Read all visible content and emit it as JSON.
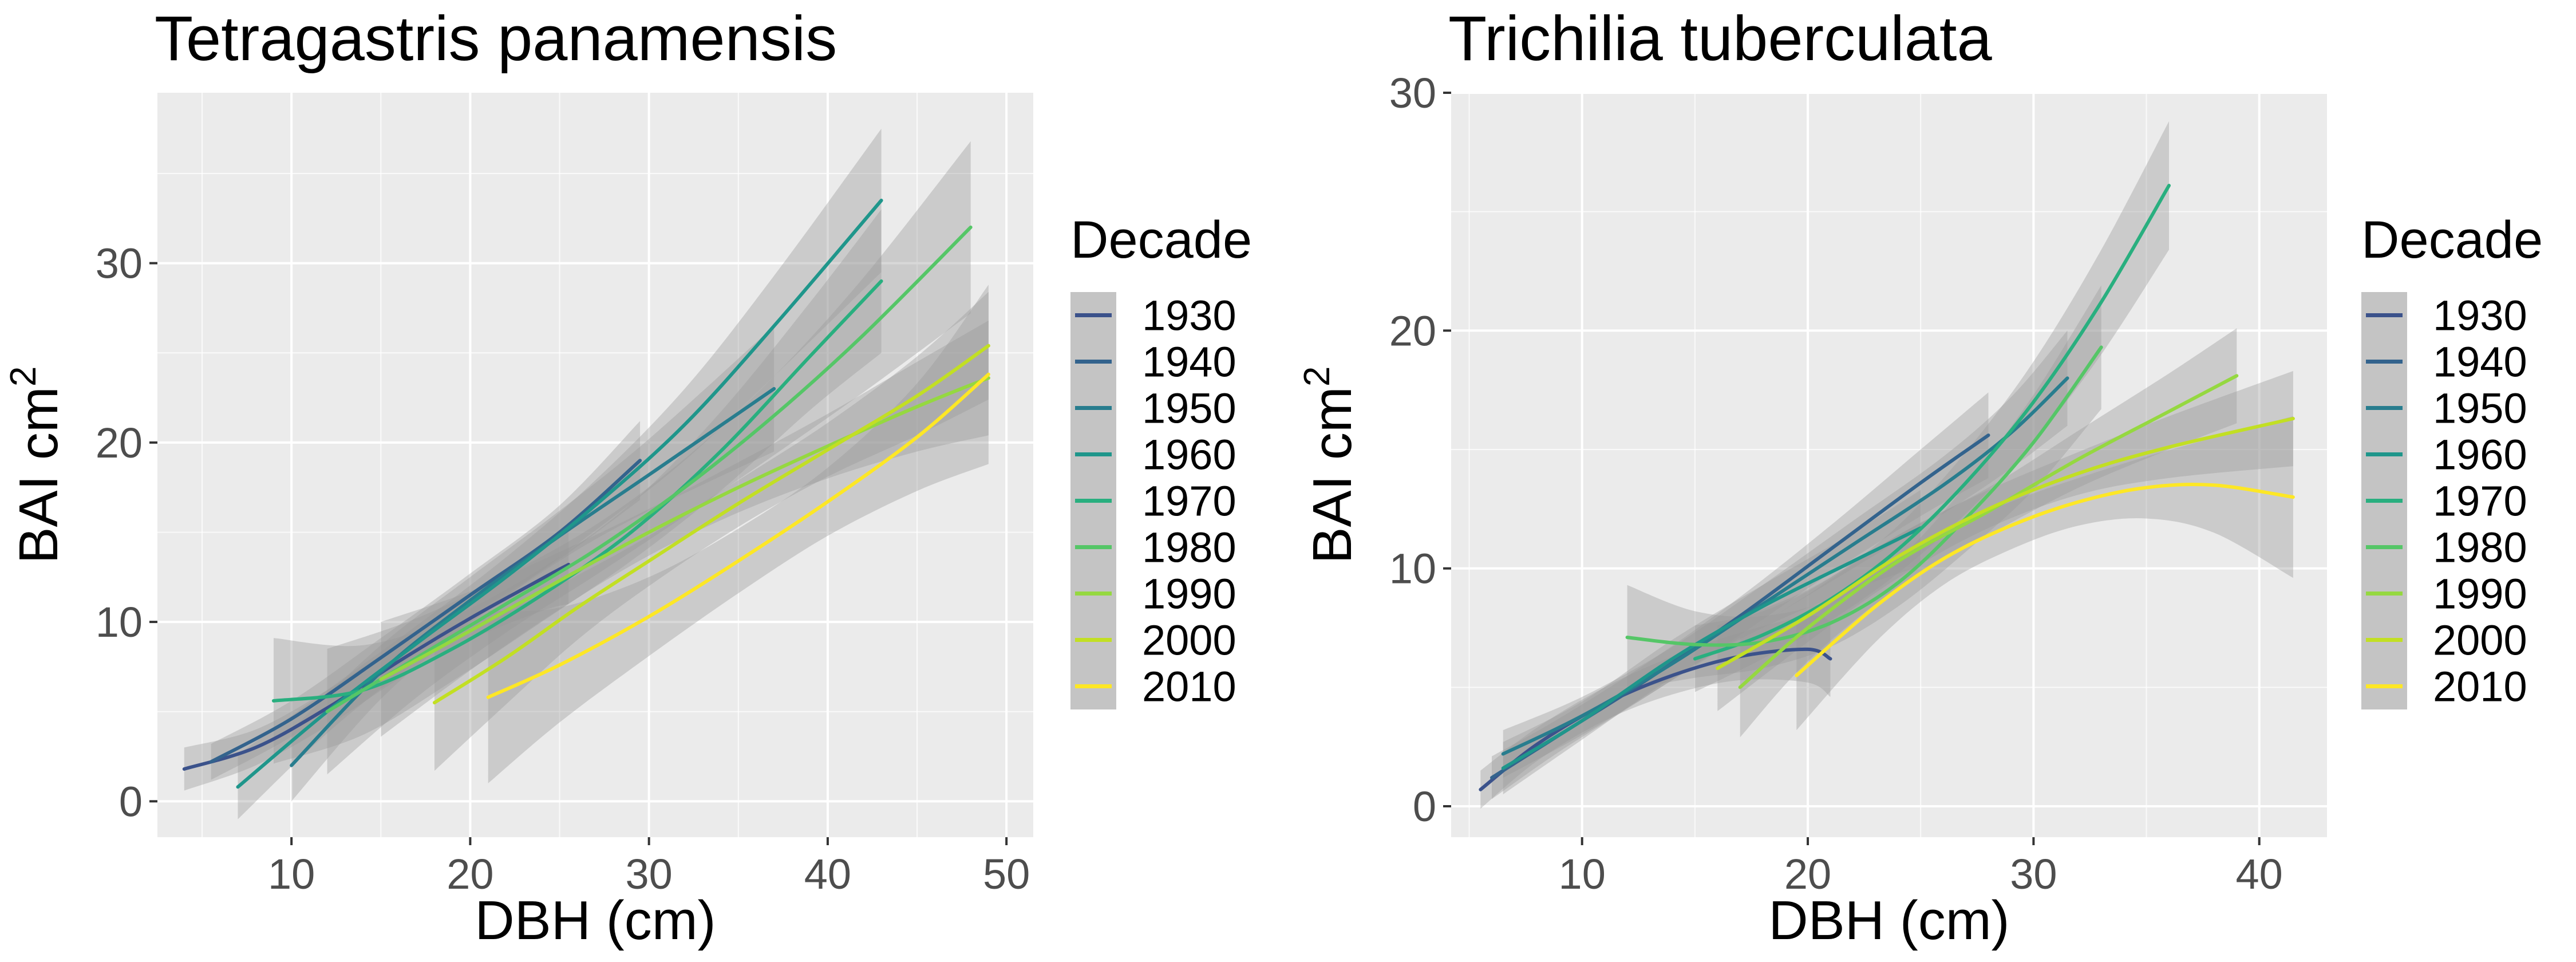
{
  "colors": {
    "1930": "#3B528B",
    "1940": "#33638D",
    "1950": "#287D8E",
    "1960": "#1F968B",
    "1970": "#29AF7F",
    "1980": "#55C667",
    "1990": "#95D840",
    "2000": "#C2DF23",
    "2010": "#FDE725"
  },
  "chart_data": [
    {
      "type": "line",
      "title": "Tetragastris panamensis",
      "xlabel": "DBH (cm)",
      "ylabel": "BAI cm",
      "ylabel_sup": "2",
      "xlim": [
        2.5,
        51.5
      ],
      "ylim": [
        -2,
        39.5
      ],
      "xticks": [
        10,
        20,
        30,
        40,
        50
      ],
      "yticks": [
        0,
        10,
        20,
        30
      ],
      "grid": true,
      "legend": {
        "title": "Decade",
        "position": "right",
        "entries": [
          "1930",
          "1940",
          "1950",
          "1960",
          "1970",
          "1980",
          "1990",
          "2000",
          "2010"
        ]
      },
      "series": [
        {
          "name": "1930",
          "x": [
            4,
            8,
            12,
            16,
            20,
            24,
            25.5
          ],
          "y": [
            1.8,
            3.0,
            5.2,
            7.8,
            10.2,
            12.4,
            13.2
          ],
          "band": [
            1.2,
            1.0,
            1.0,
            1.0,
            1.2,
            1.8,
            2.2
          ]
        },
        {
          "name": "1940",
          "x": [
            5.5,
            10,
            15,
            20,
            25,
            29.5
          ],
          "y": [
            2.2,
            4.6,
            8.0,
            11.5,
            15.0,
            19.0
          ],
          "band": [
            1.0,
            1.0,
            1.1,
            1.2,
            1.5,
            2.2
          ]
        },
        {
          "name": "1950",
          "x": [
            10,
            15,
            20,
            25,
            30,
            37
          ],
          "y": [
            2.0,
            7.2,
            11.2,
            14.8,
            18.2,
            23.0
          ],
          "band": [
            2.0,
            1.5,
            1.3,
            1.4,
            2.0,
            3.5
          ]
        },
        {
          "name": "1960",
          "x": [
            7,
            12,
            17,
            22,
            27,
            32,
            37,
            43
          ],
          "y": [
            0.8,
            5.0,
            8.8,
            12.5,
            16.5,
            21.0,
            26.5,
            33.5
          ],
          "band": [
            1.8,
            1.2,
            1.0,
            1.1,
            1.4,
            2.0,
            2.8,
            4.0
          ]
        },
        {
          "name": "1970",
          "x": [
            9,
            14,
            19,
            24,
            29,
            34,
            39,
            43
          ],
          "y": [
            5.6,
            6.2,
            8.5,
            11.5,
            15.0,
            19.5,
            24.8,
            29.0
          ],
          "band": [
            3.5,
            2.5,
            1.8,
            1.5,
            1.6,
            2.2,
            3.0,
            4.0
          ]
        },
        {
          "name": "1980",
          "x": [
            12,
            17,
            22,
            27,
            32,
            37,
            42,
            48
          ],
          "y": [
            5.0,
            8.0,
            11.0,
            14.0,
            17.5,
            21.5,
            26.0,
            32.0
          ],
          "band": [
            3.5,
            2.2,
            1.6,
            1.4,
            1.6,
            2.2,
            3.2,
            4.8
          ]
        },
        {
          "name": "1990",
          "x": [
            15,
            20,
            25,
            30,
            35,
            40,
            45,
            49
          ],
          "y": [
            6.8,
            9.5,
            12.3,
            15.0,
            17.5,
            19.8,
            22.0,
            23.6
          ],
          "band": [
            3.2,
            2.2,
            1.6,
            1.3,
            1.4,
            1.8,
            2.5,
            3.2
          ]
        },
        {
          "name": "2000",
          "x": [
            18,
            22,
            26,
            30,
            35,
            40,
            45,
            49
          ],
          "y": [
            5.5,
            8.0,
            10.8,
            13.4,
            16.6,
            19.6,
            22.6,
            25.4
          ],
          "band": [
            3.8,
            2.6,
            1.8,
            1.4,
            1.3,
            1.5,
            2.2,
            3.0
          ]
        },
        {
          "name": "2010",
          "x": [
            21,
            25,
            30,
            35,
            40,
            45,
            49
          ],
          "y": [
            5.8,
            7.6,
            10.3,
            13.4,
            16.7,
            20.3,
            23.8
          ],
          "band": [
            4.8,
            3.2,
            2.2,
            1.8,
            1.9,
            3.0,
            5.0
          ]
        }
      ]
    },
    {
      "type": "line",
      "title": "Trichilia tuberculata",
      "xlabel": "DBH (cm)",
      "ylabel": "BAI cm",
      "ylabel_sup": "2",
      "xlim": [
        4.2,
        43
      ],
      "ylim": [
        -1.3,
        30
      ],
      "xticks": [
        10,
        20,
        30,
        40
      ],
      "yticks": [
        0,
        10,
        20,
        30
      ],
      "grid": true,
      "legend": {
        "title": "Decade",
        "position": "right",
        "entries": [
          "1930",
          "1940",
          "1950",
          "1960",
          "1970",
          "1980",
          "1990",
          "2000",
          "2010"
        ]
      },
      "series": [
        {
          "name": "1930",
          "x": [
            5.5,
            8,
            11,
            14,
            17,
            20,
            21
          ],
          "y": [
            0.7,
            2.6,
            4.3,
            5.5,
            6.3,
            6.6,
            6.2
          ],
          "band": [
            0.8,
            0.7,
            0.7,
            0.8,
            1.0,
            1.4,
            1.6
          ]
        },
        {
          "name": "1940",
          "x": [
            6,
            9,
            13,
            17,
            21,
            25,
            28
          ],
          "y": [
            1.2,
            3.0,
            5.4,
            8.0,
            10.8,
            13.6,
            15.6
          ],
          "band": [
            0.9,
            0.7,
            0.7,
            0.8,
            1.0,
            1.4,
            1.8
          ]
        },
        {
          "name": "1950",
          "x": [
            6.5,
            10,
            14,
            18,
            22,
            26,
            29,
            31.5
          ],
          "y": [
            2.2,
            3.8,
            6.0,
            8.5,
            11.0,
            13.5,
            15.7,
            18.0
          ],
          "band": [
            1.0,
            0.8,
            0.7,
            0.8,
            1.0,
            1.2,
            1.5,
            2.0
          ]
        },
        {
          "name": "1960",
          "x": [
            6.5,
            10,
            14,
            18,
            22,
            25
          ],
          "y": [
            1.6,
            3.6,
            6.2,
            8.4,
            10.3,
            11.7
          ],
          "band": [
            1.1,
            0.8,
            0.8,
            0.9,
            1.2,
            1.6
          ]
        },
        {
          "name": "1970",
          "x": [
            15,
            18,
            21,
            24,
            27,
            30,
            33,
            36
          ],
          "y": [
            6.2,
            7.2,
            8.7,
            10.8,
            13.6,
            17.0,
            21.2,
            26.1
          ],
          "band": [
            1.4,
            1.0,
            0.9,
            1.0,
            1.3,
            1.7,
            2.2,
            2.7
          ]
        },
        {
          "name": "1980",
          "x": [
            12,
            15,
            18,
            21,
            24,
            27,
            30,
            33
          ],
          "y": [
            7.1,
            6.8,
            6.9,
            7.7,
            9.4,
            12.1,
            15.3,
            19.3
          ],
          "band": [
            2.2,
            1.4,
            1.1,
            1.0,
            1.0,
            1.4,
            2.0,
            2.6
          ]
        },
        {
          "name": "1990",
          "x": [
            17,
            20,
            24,
            28,
            32,
            36,
            39
          ],
          "y": [
            5.0,
            7.5,
            10.3,
            12.4,
            14.6,
            16.6,
            18.1
          ],
          "band": [
            2.1,
            1.4,
            1.1,
            1.0,
            1.2,
            1.6,
            2.0
          ]
        },
        {
          "name": "2000",
          "x": [
            16,
            20,
            24,
            28,
            32,
            36,
            41.5
          ],
          "y": [
            5.8,
            8.0,
            10.5,
            12.5,
            14.0,
            15.1,
            16.3
          ],
          "band": [
            1.8,
            1.1,
            0.9,
            0.8,
            0.9,
            1.3,
            2.0
          ]
        },
        {
          "name": "2010",
          "x": [
            19.5,
            23,
            26,
            29,
            32,
            35,
            38,
            41.5
          ],
          "y": [
            5.5,
            8.4,
            10.4,
            11.8,
            12.8,
            13.4,
            13.5,
            13.0
          ],
          "band": [
            2.3,
            1.5,
            1.1,
            1.0,
            1.0,
            1.3,
            2.0,
            3.4
          ]
        }
      ]
    }
  ]
}
